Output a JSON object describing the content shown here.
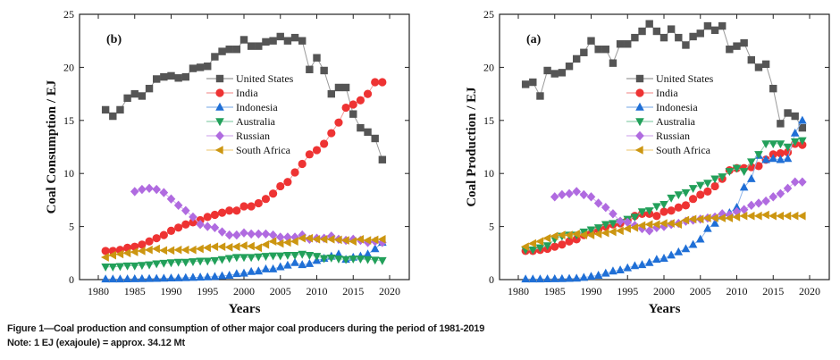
{
  "caption": {
    "line1": "Figure 1—Coal production and consumption of other major coal producers during the period of 1981-2019",
    "line2": "Note: 1 EJ (exajoule) = approx. 34.12 Mt"
  },
  "chart_data": [
    {
      "id": "consumption",
      "type": "line",
      "panel_label": "(b)",
      "title": "",
      "xlabel": "Years",
      "ylabel": "Coal Consumption / EJ",
      "xlim": [
        1977.5,
        2022.5
      ],
      "ylim": [
        0,
        25
      ],
      "xticks": [
        1980,
        1985,
        1990,
        1995,
        2000,
        2005,
        2010,
        2015,
        2020
      ],
      "yticks": [
        0,
        5,
        10,
        15,
        20,
        25
      ],
      "grid": false,
      "legend_position": "center-right",
      "x": [
        1981,
        1982,
        1983,
        1984,
        1985,
        1986,
        1987,
        1988,
        1989,
        1990,
        1991,
        1992,
        1993,
        1994,
        1995,
        1996,
        1997,
        1998,
        1999,
        2000,
        2001,
        2002,
        2003,
        2004,
        2005,
        2006,
        2007,
        2008,
        2009,
        2010,
        2011,
        2012,
        2013,
        2014,
        2015,
        2016,
        2017,
        2018,
        2019
      ],
      "series": [
        {
          "name": "United States",
          "marker": "square",
          "color": "#555555",
          "line_color": "#9a9a9a",
          "values": [
            16.0,
            15.4,
            16.0,
            17.1,
            17.5,
            17.3,
            18.0,
            18.9,
            19.1,
            19.2,
            19.0,
            19.1,
            19.9,
            20.0,
            20.1,
            21.0,
            21.5,
            21.7,
            21.7,
            22.6,
            22.0,
            22.0,
            22.4,
            22.5,
            22.9,
            22.5,
            22.8,
            22.5,
            19.8,
            20.9,
            19.7,
            17.5,
            18.1,
            18.1,
            15.6,
            14.3,
            13.9,
            13.3,
            11.3
          ]
        },
        {
          "name": "India",
          "marker": "circle",
          "color": "#ee3333",
          "line_color": "#f39a9a",
          "values": [
            2.7,
            2.7,
            2.8,
            3.0,
            3.1,
            3.3,
            3.6,
            3.9,
            4.2,
            4.6,
            4.9,
            5.2,
            5.4,
            5.6,
            5.9,
            6.1,
            6.3,
            6.5,
            6.5,
            6.9,
            6.9,
            7.2,
            7.6,
            8.1,
            8.8,
            9.2,
            10.1,
            10.9,
            11.8,
            12.2,
            12.8,
            13.8,
            14.8,
            16.2,
            16.5,
            16.9,
            17.5,
            18.6,
            18.6
          ]
        },
        {
          "name": "Indonesia",
          "marker": "triangle-up",
          "color": "#1f6fd6",
          "line_color": "#8fb6ea",
          "values": [
            0.05,
            0.05,
            0.05,
            0.06,
            0.07,
            0.08,
            0.09,
            0.1,
            0.12,
            0.14,
            0.15,
            0.17,
            0.2,
            0.22,
            0.25,
            0.28,
            0.35,
            0.4,
            0.55,
            0.6,
            0.75,
            0.8,
            1.0,
            1.0,
            1.2,
            1.35,
            1.6,
            1.4,
            1.5,
            1.8,
            2.0,
            2.2,
            2.4,
            1.9,
            2.1,
            2.2,
            2.4,
            2.9,
            3.5
          ]
        },
        {
          "name": "Australia",
          "marker": "triangle-down",
          "color": "#22a05a",
          "line_color": "#8fd1ad",
          "values": [
            1.2,
            1.2,
            1.25,
            1.3,
            1.3,
            1.35,
            1.4,
            1.5,
            1.55,
            1.6,
            1.65,
            1.65,
            1.7,
            1.75,
            1.75,
            1.8,
            1.9,
            2.0,
            2.1,
            2.1,
            2.1,
            2.15,
            2.2,
            2.25,
            2.25,
            2.3,
            2.3,
            2.4,
            2.3,
            2.2,
            2.0,
            2.05,
            1.95,
            1.9,
            1.95,
            1.95,
            1.9,
            1.85,
            1.8
          ]
        },
        {
          "name": "Russian",
          "marker": "diamond",
          "color": "#b06be0",
          "line_color": "#d5b1ef",
          "values": [
            null,
            null,
            null,
            null,
            8.3,
            8.5,
            8.6,
            8.5,
            8.2,
            7.6,
            7.0,
            6.5,
            5.9,
            5.2,
            5.0,
            4.9,
            4.5,
            4.2,
            4.2,
            4.4,
            4.3,
            4.3,
            4.3,
            4.2,
            4.0,
            4.0,
            4.0,
            4.2,
            3.8,
            3.9,
            3.9,
            4.1,
            3.8,
            3.7,
            3.8,
            3.7,
            3.5,
            3.6,
            3.5
          ]
        },
        {
          "name": "South Africa",
          "marker": "triangle-left",
          "color": "#cc9611",
          "line_color": "#f0d089",
          "values": [
            2.1,
            2.3,
            2.4,
            2.5,
            2.6,
            2.7,
            2.8,
            2.9,
            2.75,
            2.75,
            2.8,
            2.8,
            2.8,
            2.9,
            3.0,
            3.1,
            3.1,
            3.05,
            3.1,
            3.2,
            3.15,
            3.0,
            3.3,
            3.6,
            3.4,
            3.5,
            3.6,
            3.9,
            3.9,
            3.8,
            3.8,
            3.8,
            3.75,
            3.7,
            3.6,
            3.8,
            3.7,
            3.75,
            3.8
          ]
        }
      ]
    },
    {
      "id": "production",
      "type": "line",
      "panel_label": "(a)",
      "title": "",
      "xlabel": "Years",
      "ylabel": "Coal Production / EJ",
      "xlim": [
        1977.5,
        2022.5
      ],
      "ylim": [
        0,
        25
      ],
      "xticks": [
        1980,
        1985,
        1990,
        1995,
        2000,
        2005,
        2010,
        2015,
        2020
      ],
      "yticks": [
        0,
        5,
        10,
        15,
        20,
        25
      ],
      "grid": false,
      "legend_position": "center-right",
      "x": [
        1981,
        1982,
        1983,
        1984,
        1985,
        1986,
        1987,
        1988,
        1989,
        1990,
        1991,
        1992,
        1993,
        1994,
        1995,
        1996,
        1997,
        1998,
        1999,
        2000,
        2001,
        2002,
        2003,
        2004,
        2005,
        2006,
        2007,
        2008,
        2009,
        2010,
        2011,
        2012,
        2013,
        2014,
        2015,
        2016,
        2017,
        2018,
        2019
      ],
      "series": [
        {
          "name": "United States",
          "marker": "square",
          "color": "#555555",
          "line_color": "#9a9a9a",
          "values": [
            18.4,
            18.6,
            17.3,
            19.7,
            19.4,
            19.5,
            20.1,
            20.8,
            21.4,
            22.5,
            21.7,
            21.7,
            20.4,
            22.2,
            22.2,
            22.8,
            23.4,
            24.1,
            23.4,
            22.8,
            23.6,
            22.8,
            22.1,
            22.9,
            23.2,
            23.9,
            23.5,
            23.9,
            21.7,
            22.0,
            22.3,
            20.7,
            20.0,
            20.3,
            18.0,
            14.7,
            15.7,
            15.4,
            14.3
          ]
        },
        {
          "name": "India",
          "marker": "circle",
          "color": "#ee3333",
          "line_color": "#f39a9a",
          "values": [
            2.7,
            2.7,
            2.8,
            2.9,
            3.1,
            3.3,
            3.6,
            3.8,
            4.2,
            4.4,
            4.7,
            5.0,
            5.2,
            5.3,
            5.6,
            6.0,
            6.2,
            6.2,
            6.0,
            6.4,
            6.5,
            6.8,
            7.0,
            7.6,
            8.0,
            8.3,
            8.8,
            9.5,
            10.3,
            10.5,
            10.5,
            10.6,
            10.7,
            11.3,
            11.8,
            11.9,
            12.0,
            12.8,
            12.7
          ]
        },
        {
          "name": "Indonesia",
          "marker": "triangle-up",
          "color": "#1f6fd6",
          "line_color": "#8fb6ea",
          "values": [
            0.05,
            0.05,
            0.05,
            0.06,
            0.07,
            0.08,
            0.1,
            0.12,
            0.2,
            0.3,
            0.4,
            0.6,
            0.8,
            0.9,
            1.1,
            1.3,
            1.4,
            1.6,
            1.9,
            2.0,
            2.3,
            2.6,
            2.9,
            3.3,
            3.8,
            4.8,
            5.3,
            6.0,
            6.3,
            6.8,
            8.7,
            9.5,
            11.7,
            11.3,
            11.4,
            11.3,
            11.4,
            13.8,
            15.0
          ]
        },
        {
          "name": "Australia",
          "marker": "triangle-down",
          "color": "#22a05a",
          "line_color": "#8fd1ad",
          "values": [
            2.8,
            2.8,
            3.0,
            3.2,
            3.8,
            4.1,
            4.2,
            4.2,
            4.5,
            4.7,
            4.9,
            5.2,
            5.3,
            5.4,
            5.7,
            5.9,
            6.4,
            6.5,
            6.9,
            7.1,
            7.7,
            8.0,
            8.2,
            8.6,
            8.9,
            9.1,
            9.5,
            9.7,
            10.2,
            10.5,
            10.2,
            11.1,
            11.8,
            12.8,
            12.8,
            12.8,
            12.5,
            13.0,
            13.1
          ]
        },
        {
          "name": "Russian",
          "marker": "diamond",
          "color": "#b06be0",
          "line_color": "#d5b1ef",
          "values": [
            null,
            null,
            null,
            null,
            7.8,
            8.0,
            8.1,
            8.3,
            8.0,
            7.8,
            7.2,
            6.8,
            6.2,
            5.5,
            5.4,
            5.1,
            4.8,
            4.6,
            4.9,
            5.0,
            5.2,
            5.3,
            5.5,
            5.6,
            5.7,
            5.8,
            5.9,
            6.2,
            6.1,
            6.4,
            6.6,
            7.0,
            7.2,
            7.4,
            7.8,
            8.1,
            8.6,
            9.2,
            9.2
          ]
        },
        {
          "name": "South Africa",
          "marker": "triangle-left",
          "color": "#cc9611",
          "line_color": "#f0d089",
          "values": [
            3.1,
            3.4,
            3.6,
            3.9,
            4.1,
            4.2,
            4.2,
            4.3,
            4.2,
            4.2,
            4.3,
            4.4,
            4.5,
            4.6,
            4.8,
            4.9,
            5.1,
            5.2,
            5.2,
            5.3,
            5.3,
            5.2,
            5.6,
            5.7,
            5.7,
            5.8,
            5.8,
            5.8,
            5.8,
            5.9,
            6.0,
            6.0,
            6.0,
            6.1,
            6.0,
            6.0,
            6.0,
            6.0,
            6.0
          ]
        }
      ]
    }
  ]
}
